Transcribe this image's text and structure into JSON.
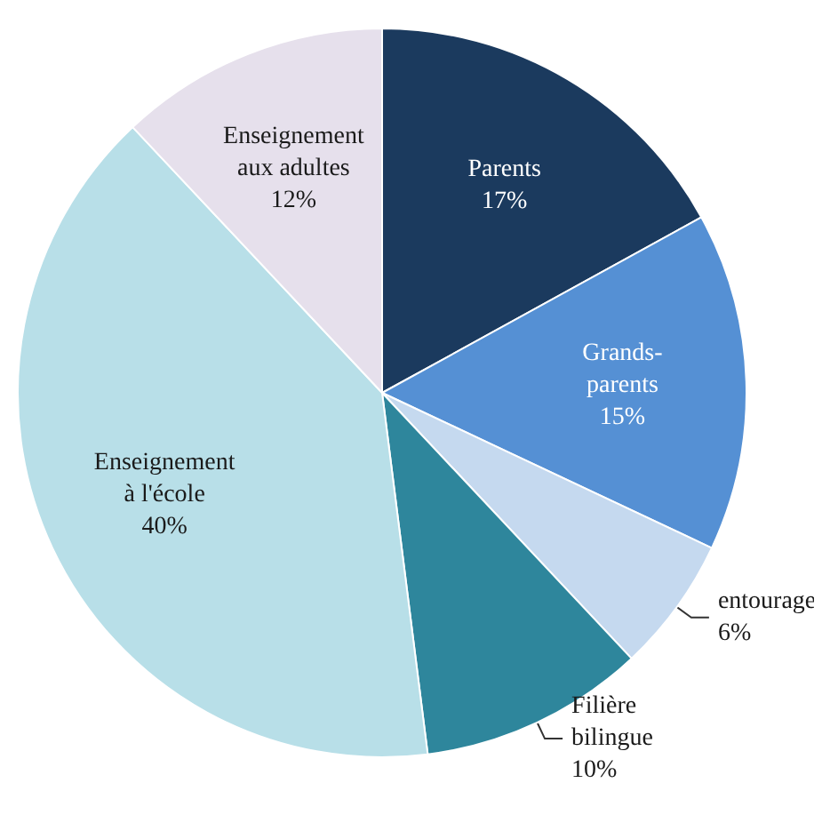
{
  "chart_data": {
    "type": "pie",
    "categories": [
      "Parents",
      "Grands-parents",
      "entourage",
      "Filière bilingue",
      "Enseignement à l'école",
      "Enseignement aux adultes"
    ],
    "values": [
      17,
      15,
      6,
      10,
      40,
      12
    ],
    "colors": [
      "#1b3a5e",
      "#5590d4",
      "#c5d9ef",
      "#2e869c",
      "#b8dfe8",
      "#e6e0ec"
    ],
    "value_labels": [
      "17%",
      "15%",
      "6%",
      "10%",
      "40%",
      "12%"
    ],
    "legend": false
  }
}
